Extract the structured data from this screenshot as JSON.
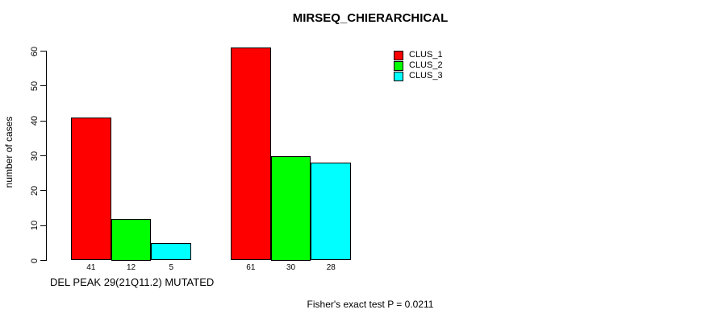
{
  "chart_data": {
    "type": "bar",
    "title": "MIRSEQ_CHIERARCHICAL",
    "ylabel": "number of cases",
    "xlabel": "",
    "ylim": [
      0,
      60
    ],
    "yticks": [
      0,
      10,
      20,
      30,
      40,
      50,
      60
    ],
    "grid": false,
    "legend_position": "top-right",
    "group_labels": [
      "DEL PEAK 29(21Q11.2) MUTATED",
      ""
    ],
    "series": [
      {
        "name": "CLUS_1",
        "color": "#FF0000",
        "values": [
          41,
          61
        ]
      },
      {
        "name": "CLUS_2",
        "color": "#00FF00",
        "values": [
          12,
          30
        ]
      },
      {
        "name": "CLUS_3",
        "color": "#00FFFF",
        "values": [
          5,
          28
        ]
      }
    ],
    "bar_value_labels_shown": true,
    "annotation": "Fisher's exact test P = 0.0211"
  }
}
